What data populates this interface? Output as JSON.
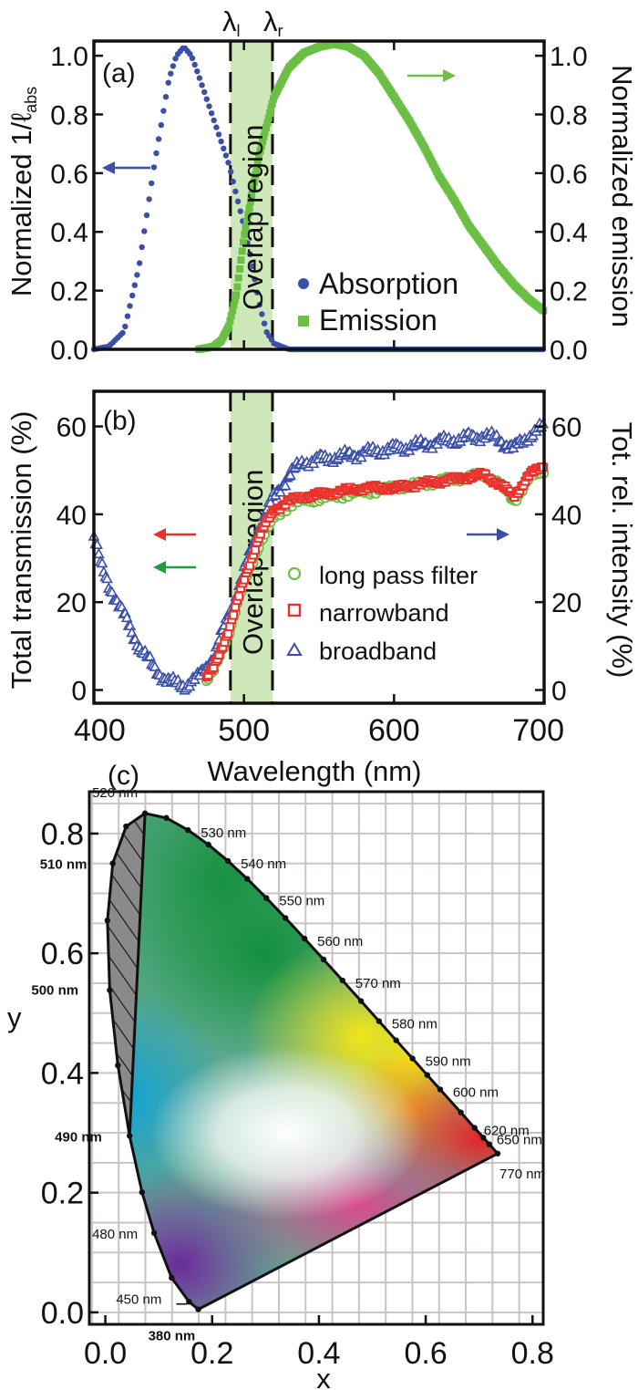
{
  "chart_data": [
    {
      "type": "scatter",
      "panel": "(a)",
      "ylabel": "Normalized 1/ℓ",
      "ylabel_sub": "abs",
      "ylabel_right": "Normalized emission",
      "xlim": [
        400,
        700
      ],
      "ylim": [
        0.0,
        1.05
      ],
      "yticks": [
        "0.0",
        "0.2",
        "0.4",
        "0.6",
        "0.8",
        "1.0"
      ],
      "lambda_l": "λ",
      "lambda_l_sub": "l",
      "lambda_r": "λ",
      "lambda_r_sub": "r",
      "overlap": {
        "x0": 491,
        "x1": 519,
        "label": "Overlap region"
      },
      "series": [
        {
          "name": "Absorption",
          "color": "#3a4fa5",
          "marker": "circle",
          "x": [
            400,
            410,
            420,
            430,
            440,
            450,
            455,
            460,
            465,
            470,
            480,
            490,
            500,
            505,
            510,
            515,
            520,
            530,
            540,
            550,
            560,
            570,
            580,
            590,
            600,
            620,
            640,
            660,
            680,
            700
          ],
          "y": [
            0.0,
            0.01,
            0.06,
            0.28,
            0.62,
            0.92,
            1.0,
            1.03,
            1.0,
            0.93,
            0.78,
            0.63,
            0.42,
            0.3,
            0.16,
            0.06,
            0.02,
            0.0,
            0.0,
            0.0,
            0.0,
            0.0,
            0.0,
            0.0,
            0.0,
            0.0,
            0.0,
            0.0,
            0.0,
            0.0
          ]
        },
        {
          "name": "Emission",
          "color": "#6cbf45",
          "marker": "square",
          "x": [
            470,
            480,
            485,
            490,
            495,
            500,
            510,
            520,
            530,
            540,
            550,
            560,
            570,
            580,
            590,
            600,
            610,
            620,
            630,
            640,
            650,
            660,
            670,
            680,
            690,
            700
          ],
          "y": [
            0.0,
            0.01,
            0.03,
            0.08,
            0.19,
            0.38,
            0.66,
            0.86,
            0.96,
            1.01,
            1.03,
            1.04,
            1.03,
            1.0,
            0.94,
            0.86,
            0.78,
            0.69,
            0.59,
            0.51,
            0.42,
            0.35,
            0.28,
            0.22,
            0.17,
            0.13
          ]
        }
      ]
    },
    {
      "type": "scatter",
      "panel": "(b)",
      "xlabel": "Wavelength (nm)",
      "ylabel": "Total transmission (%)",
      "ylabel_right": "Tot. rel. intensity (%)",
      "xlim": [
        400,
        700
      ],
      "ylim": [
        -3,
        68
      ],
      "xticks": [
        "400",
        "500",
        "600",
        "700"
      ],
      "yticks": [
        "0",
        "20",
        "40",
        "60"
      ],
      "overlap": {
        "x0": 491,
        "x1": 519,
        "label": "Overlap region"
      },
      "series": [
        {
          "name": "long pass filter",
          "color": "#6cbf45",
          "marker": "circle-open",
          "x": [
            475,
            480,
            490,
            500,
            510,
            520,
            530,
            540,
            560,
            580,
            600,
            620,
            640,
            660,
            670,
            680,
            690,
            700
          ],
          "y": [
            2,
            4,
            13,
            24,
            33,
            39,
            42,
            43,
            44,
            45,
            46,
            47,
            48,
            49,
            47,
            43,
            48,
            50
          ]
        },
        {
          "name": "narrowband",
          "color": "#e8312b",
          "marker": "square-open",
          "x": [
            475,
            480,
            490,
            500,
            510,
            520,
            530,
            540,
            560,
            580,
            600,
            620,
            640,
            660,
            670,
            680,
            690,
            700
          ],
          "y": [
            3,
            5,
            14,
            25,
            35,
            41,
            43,
            44,
            45,
            46,
            46,
            47,
            48,
            49,
            47,
            44,
            49,
            51
          ]
        },
        {
          "name": "broadband",
          "color": "#3a4fa5",
          "marker": "triangle-open",
          "x": [
            400,
            405,
            410,
            420,
            430,
            440,
            450,
            460,
            470,
            480,
            490,
            500,
            510,
            520,
            530,
            540,
            560,
            580,
            600,
            620,
            640,
            660,
            670,
            680,
            690,
            700
          ],
          "y": [
            35,
            28,
            24,
            17,
            10,
            5,
            2,
            1,
            3,
            8,
            17,
            27,
            37,
            44,
            49,
            52,
            53,
            54,
            55,
            56,
            57,
            58,
            57,
            55,
            58,
            60
          ]
        }
      ]
    },
    {
      "type": "scatter",
      "panel": "(c)",
      "xlabel": "x",
      "ylabel": "y",
      "xlim": [
        -0.03,
        0.82
      ],
      "ylim": [
        -0.02,
        0.87
      ],
      "xticks": [
        "0.0",
        "0.2",
        "0.4",
        "0.6",
        "0.8"
      ],
      "yticks": [
        "0.0",
        "0.2",
        "0.4",
        "0.6",
        "0.8"
      ],
      "locus": [
        {
          "x": 0.1741,
          "y": 0.005,
          "label": "380 nm"
        },
        {
          "x": 0.1566,
          "y": 0.0177,
          "label": "450 nm"
        },
        {
          "x": 0.1241,
          "y": 0.0578
        },
        {
          "x": 0.0913,
          "y": 0.1327,
          "label": "480 nm"
        },
        {
          "x": 0.0687,
          "y": 0.2007
        },
        {
          "x": 0.0454,
          "y": 0.295,
          "label": "490 nm"
        },
        {
          "x": 0.0235,
          "y": 0.4127
        },
        {
          "x": 0.0082,
          "y": 0.5384,
          "label": "500 nm"
        },
        {
          "x": 0.0039,
          "y": 0.6548
        },
        {
          "x": 0.0139,
          "y": 0.7502,
          "label": "510 nm"
        },
        {
          "x": 0.0389,
          "y": 0.812
        },
        {
          "x": 0.0743,
          "y": 0.8338,
          "label": "520 nm"
        },
        {
          "x": 0.1142,
          "y": 0.8262
        },
        {
          "x": 0.1547,
          "y": 0.8059,
          "label": "530 nm"
        },
        {
          "x": 0.1929,
          "y": 0.7816
        },
        {
          "x": 0.2296,
          "y": 0.7543,
          "label": "540 nm"
        },
        {
          "x": 0.2658,
          "y": 0.7243
        },
        {
          "x": 0.3016,
          "y": 0.6923,
          "label": "550 nm"
        },
        {
          "x": 0.3373,
          "y": 0.6589
        },
        {
          "x": 0.3731,
          "y": 0.6245,
          "label": "560 nm"
        },
        {
          "x": 0.4087,
          "y": 0.5896
        },
        {
          "x": 0.4441,
          "y": 0.5547,
          "label": "570 nm"
        },
        {
          "x": 0.4788,
          "y": 0.5202
        },
        {
          "x": 0.5125,
          "y": 0.4866,
          "label": "580 nm"
        },
        {
          "x": 0.5448,
          "y": 0.4544
        },
        {
          "x": 0.5752,
          "y": 0.4242,
          "label": "590 nm"
        },
        {
          "x": 0.6029,
          "y": 0.3965
        },
        {
          "x": 0.627,
          "y": 0.3725,
          "label": "600 nm"
        },
        {
          "x": 0.6658,
          "y": 0.334
        },
        {
          "x": 0.6915,
          "y": 0.3083,
          "label": "620 nm"
        },
        {
          "x": 0.7079,
          "y": 0.292
        },
        {
          "x": 0.719,
          "y": 0.2809,
          "label": "650 nm"
        },
        {
          "x": 0.7347,
          "y": 0.2653,
          "label": "770 nm"
        }
      ],
      "hatch_region": [
        [
          0.0743,
          0.8338
        ],
        [
          0.0454,
          0.295
        ]
      ],
      "overlap_color": "#cfe8b9"
    }
  ]
}
